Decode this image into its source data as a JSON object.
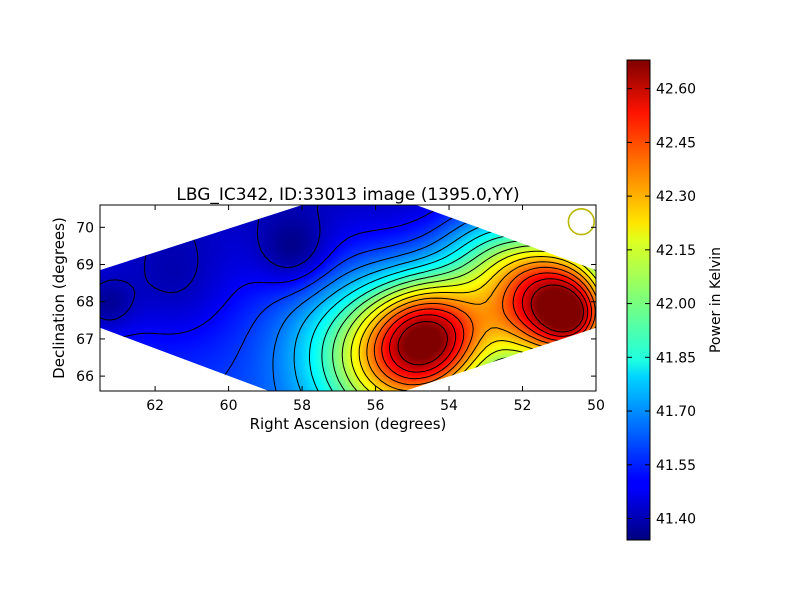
{
  "chart_data": {
    "type": "heatmap",
    "title": "LBG_IC342, ID:33013 image (1395.0,YY)",
    "xlabel": "Right Ascension (degrees)",
    "ylabel": "Declination (degrees)",
    "xlim": [
      63.5,
      50.0
    ],
    "ylim": [
      65.6,
      70.6
    ],
    "x_ticks": [
      62,
      60,
      58,
      56,
      54,
      52,
      50
    ],
    "y_ticks": [
      66,
      67,
      68,
      69,
      70
    ],
    "grid": false,
    "colorbar": {
      "label": "Power in Kelvin",
      "range": [
        41.34,
        42.68
      ],
      "ticks": [
        "42.60",
        "42.45",
        "42.30",
        "42.15",
        "42.00",
        "41.85",
        "41.70",
        "41.55",
        "41.40"
      ],
      "colormap": "jet"
    },
    "region_corners": [
      [
        63.5,
        68.85
      ],
      [
        58.0,
        70.6
      ],
      [
        54.9,
        70.6
      ],
      [
        50.0,
        68.85
      ],
      [
        50.0,
        67.3
      ],
      [
        55.2,
        65.6
      ],
      [
        58.9,
        65.6
      ],
      [
        63.5,
        67.3
      ]
    ],
    "field": {
      "background": 41.5,
      "blobs": [
        {
          "ra": 58.2,
          "dec": 69.3,
          "amp": -0.15,
          "sigma": 0.7
        },
        {
          "ra": 61.5,
          "dec": 68.5,
          "amp": -0.08,
          "sigma": 1.0
        },
        {
          "ra": 63.3,
          "dec": 67.9,
          "amp": -0.12,
          "sigma": 0.5
        },
        {
          "ra": 51.2,
          "dec": 68.0,
          "amp": 1.1,
          "sigma": 1.25
        },
        {
          "ra": 50.6,
          "dec": 67.55,
          "amp": 0.3,
          "sigma": 0.6
        },
        {
          "ra": 54.4,
          "dec": 67.1,
          "amp": 0.75,
          "sigma": 1.1
        },
        {
          "ra": 55.5,
          "dec": 66.4,
          "amp": 0.55,
          "sigma": 1.4
        },
        {
          "ra": 57.2,
          "dec": 67.2,
          "amp": 0.15,
          "sigma": 1.5
        },
        {
          "ra": 53.0,
          "dec": 69.3,
          "amp": 0.25,
          "sigma": 1.0
        }
      ],
      "dec_slope": -0.03
    },
    "contour_levels": [
      41.42,
      41.5,
      41.58,
      41.66,
      41.74,
      41.82,
      41.9,
      41.98,
      42.06,
      42.14,
      42.22,
      42.3,
      42.38,
      42.46,
      42.54,
      42.62
    ],
    "beam": {
      "ra": 50.4,
      "dec": 70.15,
      "radius_deg": 0.35,
      "color": "#b8b800"
    }
  }
}
